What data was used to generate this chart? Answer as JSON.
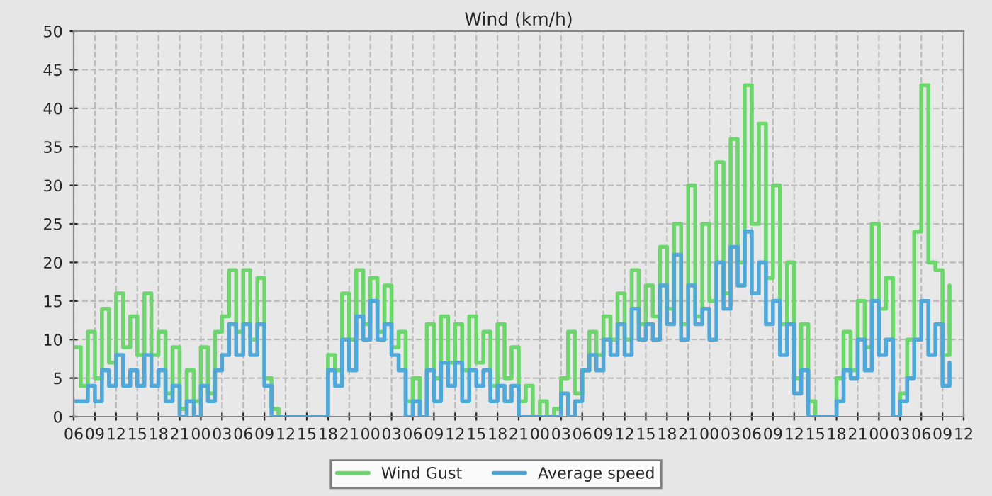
{
  "chart_data": {
    "type": "step",
    "title": "Wind (km/h)",
    "x": [
      6,
      7,
      8,
      9,
      10,
      11,
      12,
      13,
      14,
      15,
      16,
      17,
      18,
      19,
      20,
      21,
      22,
      23,
      24,
      25,
      26,
      27,
      28,
      29,
      30,
      31,
      32,
      33,
      34,
      35,
      36,
      37,
      38,
      39,
      40,
      41,
      42,
      43,
      44,
      45,
      46,
      47,
      48,
      49,
      50,
      51,
      52,
      53,
      54,
      55,
      56,
      57,
      58,
      59,
      60,
      61,
      62,
      63,
      64,
      65,
      66,
      67,
      68,
      69,
      70,
      71,
      72,
      73,
      74,
      75,
      76,
      77,
      78,
      79,
      80,
      81,
      82,
      83,
      84,
      85,
      86,
      87,
      88,
      89,
      90,
      91,
      92,
      93,
      94,
      95,
      96,
      97,
      98,
      99,
      100,
      101,
      102,
      103,
      104,
      105,
      106,
      107,
      108,
      109,
      110,
      111,
      112,
      113,
      114,
      115,
      116,
      117,
      118,
      119,
      120,
      121,
      122,
      123,
      124,
      125,
      126,
      127,
      128,
      129,
      130
    ],
    "series": [
      {
        "name": "Wind Gust",
        "color": "#6dd66d",
        "values": [
          9,
          4,
          11,
          5,
          14,
          7,
          16,
          9,
          13,
          8,
          16,
          8,
          11,
          3,
          9,
          1,
          6,
          2,
          9,
          3,
          11,
          13,
          19,
          11,
          19,
          10,
          18,
          5,
          1,
          0,
          0,
          0,
          0,
          0,
          0,
          0,
          8,
          6,
          16,
          10,
          19,
          12,
          18,
          11,
          17,
          9,
          11,
          2,
          5,
          0,
          12,
          5,
          13,
          7,
          12,
          6,
          13,
          7,
          11,
          4,
          12,
          5,
          9,
          2,
          4,
          0,
          2,
          0,
          1,
          5,
          11,
          3,
          6,
          11,
          8,
          13,
          10,
          16,
          10,
          19,
          12,
          17,
          13,
          22,
          14,
          25,
          12,
          30,
          13,
          25,
          15,
          33,
          16,
          36,
          20,
          43,
          25,
          38,
          18,
          30,
          12,
          20,
          5,
          12,
          2,
          0,
          0,
          0,
          5,
          11,
          6,
          15,
          9,
          25,
          14,
          18,
          0,
          3,
          10,
          24,
          43,
          20,
          19,
          8,
          17
        ]
      },
      {
        "name": "Average speed",
        "color": "#4fa8d8",
        "values": [
          2,
          2,
          4,
          2,
          6,
          4,
          8,
          4,
          6,
          4,
          8,
          4,
          6,
          2,
          4,
          0,
          2,
          0,
          4,
          2,
          6,
          8,
          12,
          8,
          12,
          8,
          12,
          4,
          0,
          0,
          0,
          0,
          0,
          0,
          0,
          0,
          6,
          4,
          10,
          6,
          13,
          10,
          15,
          10,
          12,
          8,
          6,
          0,
          2,
          0,
          6,
          2,
          7,
          4,
          7,
          2,
          6,
          4,
          6,
          2,
          4,
          2,
          4,
          0,
          0,
          0,
          0,
          0,
          0,
          3,
          0,
          2,
          6,
          8,
          6,
          10,
          8,
          12,
          8,
          14,
          10,
          12,
          10,
          17,
          12,
          21,
          10,
          17,
          12,
          14,
          10,
          20,
          14,
          22,
          17,
          24,
          16,
          20,
          12,
          15,
          8,
          12,
          3,
          6,
          0,
          0,
          0,
          0,
          2,
          6,
          5,
          10,
          6,
          15,
          8,
          10,
          0,
          2,
          5,
          10,
          15,
          8,
          12,
          4,
          7
        ]
      }
    ],
    "xlim": [
      6,
      132
    ],
    "xticks": [
      {
        "value": 6,
        "label": "06"
      },
      {
        "value": 9,
        "label": "09"
      },
      {
        "value": 12,
        "label": "12"
      },
      {
        "value": 15,
        "label": "15"
      },
      {
        "value": 18,
        "label": "18"
      },
      {
        "value": 21,
        "label": "21"
      },
      {
        "value": 24,
        "label": "00"
      },
      {
        "value": 27,
        "label": "03"
      },
      {
        "value": 30,
        "label": "06"
      },
      {
        "value": 33,
        "label": "09"
      },
      {
        "value": 36,
        "label": "12"
      },
      {
        "value": 39,
        "label": "15"
      },
      {
        "value": 42,
        "label": "18"
      },
      {
        "value": 45,
        "label": "21"
      },
      {
        "value": 48,
        "label": "00"
      },
      {
        "value": 51,
        "label": "03"
      },
      {
        "value": 54,
        "label": "06"
      },
      {
        "value": 57,
        "label": "09"
      },
      {
        "value": 60,
        "label": "12"
      },
      {
        "value": 63,
        "label": "15"
      },
      {
        "value": 66,
        "label": "18"
      },
      {
        "value": 69,
        "label": "21"
      },
      {
        "value": 72,
        "label": "00"
      },
      {
        "value": 75,
        "label": "03"
      },
      {
        "value": 78,
        "label": "06"
      },
      {
        "value": 81,
        "label": "09"
      },
      {
        "value": 84,
        "label": "12"
      },
      {
        "value": 87,
        "label": "15"
      },
      {
        "value": 90,
        "label": "18"
      },
      {
        "value": 93,
        "label": "21"
      },
      {
        "value": 96,
        "label": "00"
      },
      {
        "value": 99,
        "label": "03"
      },
      {
        "value": 102,
        "label": "06"
      },
      {
        "value": 105,
        "label": "09"
      },
      {
        "value": 108,
        "label": "12"
      },
      {
        "value": 111,
        "label": "15"
      },
      {
        "value": 114,
        "label": "18"
      },
      {
        "value": 117,
        "label": "21"
      },
      {
        "value": 120,
        "label": "00"
      },
      {
        "value": 123,
        "label": "03"
      },
      {
        "value": 126,
        "label": "06"
      },
      {
        "value": 129,
        "label": "09"
      },
      {
        "value": 132,
        "label": "12"
      }
    ],
    "ylim": [
      0,
      50
    ],
    "yticks": [
      0,
      5,
      10,
      15,
      20,
      25,
      30,
      35,
      40,
      45,
      50
    ],
    "grid": true,
    "legend": "bottom",
    "line_style": "solid",
    "marker": "none"
  }
}
